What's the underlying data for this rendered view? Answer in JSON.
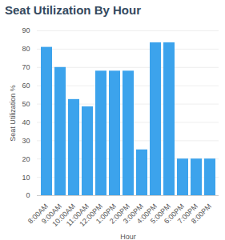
{
  "chart_data": {
    "type": "bar",
    "title": "Seat Utilization By Hour",
    "x_label": "Hour",
    "y_label": "Seat Utilization %",
    "categories": [
      "8:00AM",
      "9:00AM",
      "10:00AM",
      "11:00AM",
      "12:00PM",
      "1:00PM",
      "2:00PM",
      "3:00PM",
      "4:00PM",
      "5:00PM",
      "6:00PM",
      "7:00PM",
      "8:00PM"
    ],
    "values": [
      81,
      70,
      52.5,
      48.5,
      68,
      68,
      68,
      25,
      83.5,
      83.5,
      20,
      20,
      20
    ],
    "color": "#3ca3ec",
    "ylim": [
      0,
      90
    ],
    "yticks": [
      0,
      10,
      20,
      30,
      40,
      50,
      60,
      70,
      80,
      90
    ],
    "grid": true
  }
}
